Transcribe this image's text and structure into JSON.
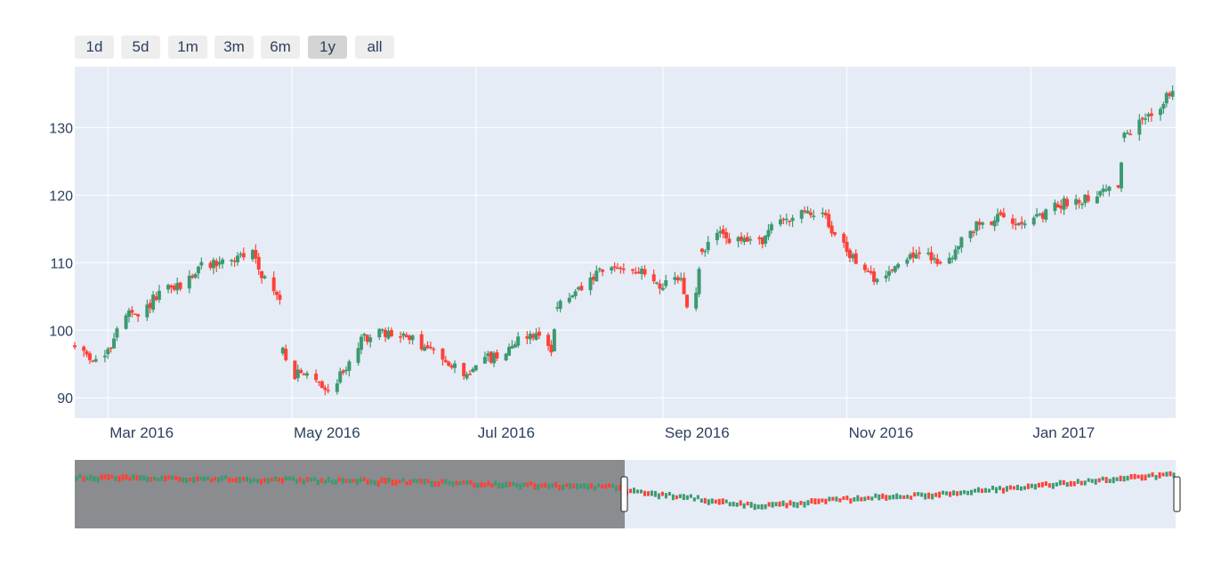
{
  "range_selector": {
    "buttons": [
      {
        "label": "1d",
        "active": false
      },
      {
        "label": "5d",
        "active": false
      },
      {
        "label": "1m",
        "active": false
      },
      {
        "label": "3m",
        "active": false
      },
      {
        "label": "6m",
        "active": false
      },
      {
        "label": "1y",
        "active": true
      },
      {
        "label": "all",
        "active": false
      }
    ]
  },
  "colors": {
    "increasing": "#3d9970",
    "decreasing": "#ff4136",
    "plot_bg": "#e5ecf6",
    "grid": "#ffffff",
    "text": "#2a3f5f",
    "rangeslider_mask": "#8a8c90"
  },
  "chart_data": {
    "type": "candlestick",
    "title": "",
    "xlabel": "",
    "ylabel": "",
    "grid": true,
    "xlim": [
      "2016-02-19",
      "2017-02-18"
    ],
    "ylim": [
      87,
      139
    ],
    "y_ticks": [
      90,
      100,
      110,
      120,
      130
    ],
    "x_ticks": [
      {
        "date": "2016-03-01",
        "label": "Mar 2016"
      },
      {
        "date": "2016-05-01",
        "label": "May 2016"
      },
      {
        "date": "2016-07-01",
        "label": "Jul 2016"
      },
      {
        "date": "2016-09-01",
        "label": "Sep 2016"
      },
      {
        "date": "2016-11-01",
        "label": "Nov 2016"
      },
      {
        "date": "2017-01-01",
        "label": "Jan 2017"
      }
    ],
    "anchors": [
      [
        "2016-02-19",
        97.5
      ],
      [
        "2016-02-23",
        96.5
      ],
      [
        "2016-02-26",
        95.5
      ],
      [
        "2016-03-01",
        96.5
      ],
      [
        "2016-03-04",
        100.5
      ],
      [
        "2016-03-08",
        102.5
      ],
      [
        "2016-03-11",
        101.5
      ],
      [
        "2016-03-16",
        104.5
      ],
      [
        "2016-03-21",
        106.0
      ],
      [
        "2016-03-25",
        106.5
      ],
      [
        "2016-04-01",
        109.5
      ],
      [
        "2016-04-06",
        110.0
      ],
      [
        "2016-04-12",
        110.5
      ],
      [
        "2016-04-18",
        111.5
      ],
      [
        "2016-04-22",
        107.5
      ],
      [
        "2016-04-27",
        104.5
      ],
      [
        "2016-04-28",
        97.0
      ],
      [
        "2016-05-02",
        93.5
      ],
      [
        "2016-05-09",
        93.0
      ],
      [
        "2016-05-13",
        91.0
      ],
      [
        "2016-05-18",
        94.0
      ],
      [
        "2016-05-25",
        99.0
      ],
      [
        "2016-05-31",
        99.5
      ],
      [
        "2016-06-08",
        99.0
      ],
      [
        "2016-06-14",
        97.5
      ],
      [
        "2016-06-20",
        96.0
      ],
      [
        "2016-06-24",
        95.0
      ],
      [
        "2016-06-27",
        92.5
      ],
      [
        "2016-07-01",
        95.5
      ],
      [
        "2016-07-08",
        96.0
      ],
      [
        "2016-07-14",
        98.5
      ],
      [
        "2016-07-20",
        99.5
      ],
      [
        "2016-07-26",
        97.5
      ],
      [
        "2016-07-28",
        103.5
      ],
      [
        "2016-08-05",
        106.0
      ],
      [
        "2016-08-11",
        108.5
      ],
      [
        "2016-08-19",
        109.5
      ],
      [
        "2016-08-25",
        108.5
      ],
      [
        "2016-09-01",
        106.5
      ],
      [
        "2016-09-07",
        107.5
      ],
      [
        "2016-09-09",
        103.5
      ],
      [
        "2016-09-12",
        105.5
      ],
      [
        "2016-09-14",
        111.5
      ],
      [
        "2016-09-19",
        114.5
      ],
      [
        "2016-09-23",
        113.5
      ],
      [
        "2016-09-28",
        113.0
      ],
      [
        "2016-10-04",
        113.5
      ],
      [
        "2016-10-10",
        116.5
      ],
      [
        "2016-10-17",
        117.0
      ],
      [
        "2016-10-24",
        117.5
      ],
      [
        "2016-10-27",
        115.0
      ],
      [
        "2016-11-01",
        111.5
      ],
      [
        "2016-11-07",
        109.5
      ],
      [
        "2016-11-10",
        107.0
      ],
      [
        "2016-11-15",
        109.0
      ],
      [
        "2016-11-21",
        111.0
      ],
      [
        "2016-11-29",
        111.0
      ],
      [
        "2016-12-02",
        109.5
      ],
      [
        "2016-12-08",
        112.5
      ],
      [
        "2016-12-14",
        115.5
      ],
      [
        "2016-12-20",
        116.5
      ],
      [
        "2016-12-28",
        116.5
      ],
      [
        "2017-01-04",
        116.5
      ],
      [
        "2017-01-10",
        118.5
      ],
      [
        "2017-01-18",
        119.5
      ],
      [
        "2017-01-24",
        120.5
      ],
      [
        "2017-01-30",
        121.5
      ],
      [
        "2017-02-01",
        128.5
      ],
      [
        "2017-02-07",
        131.0
      ],
      [
        "2017-02-13",
        133.5
      ],
      [
        "2017-02-17",
        135.5
      ]
    ]
  },
  "rangeslider": {
    "selected_start": "2016-02-19",
    "selected_end": "2017-02-18"
  }
}
